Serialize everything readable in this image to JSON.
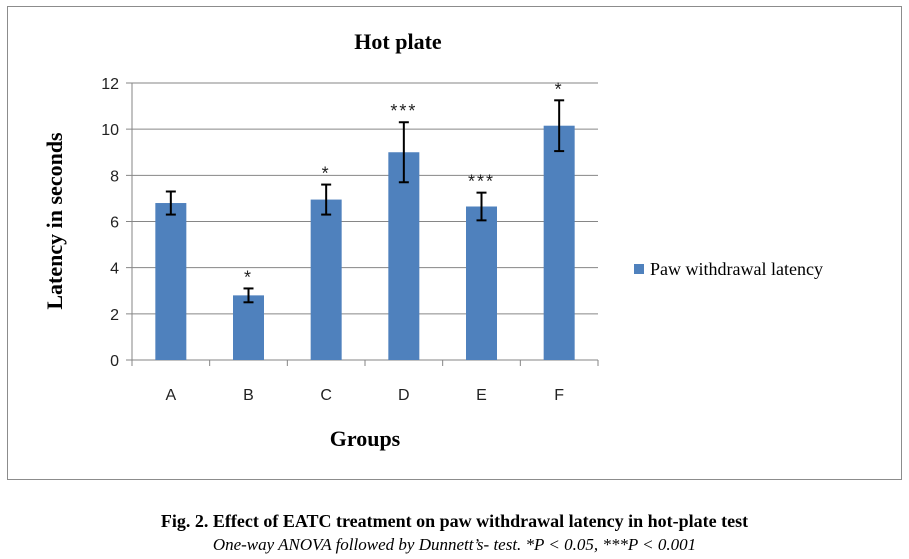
{
  "chart_data": {
    "type": "bar",
    "title": "Hot plate",
    "xlabel": "Groups",
    "ylabel": "Latency in seconds",
    "ylim": [
      0,
      12
    ],
    "yticks": [
      0,
      2,
      4,
      6,
      8,
      10,
      12
    ],
    "grid": true,
    "legend_position": "right",
    "categories": [
      "A",
      "B",
      "C",
      "D",
      "E",
      "F"
    ],
    "series": [
      {
        "name": "Paw withdrawal latency",
        "color": "#4f81bd",
        "values": [
          6.8,
          2.8,
          6.95,
          9.0,
          6.65,
          10.15
        ],
        "errors": [
          0.5,
          0.3,
          0.65,
          1.3,
          0.6,
          1.1
        ],
        "annotations": [
          "",
          "*",
          "*",
          "***",
          "***",
          "*"
        ]
      }
    ]
  },
  "caption": {
    "title": "Fig. 2. Effect of EATC treatment on paw withdrawal latency in hot-plate test",
    "note": "One-way ANOVA followed by Dunnett’s- test. *P < 0.05, ***P < 0.001"
  }
}
